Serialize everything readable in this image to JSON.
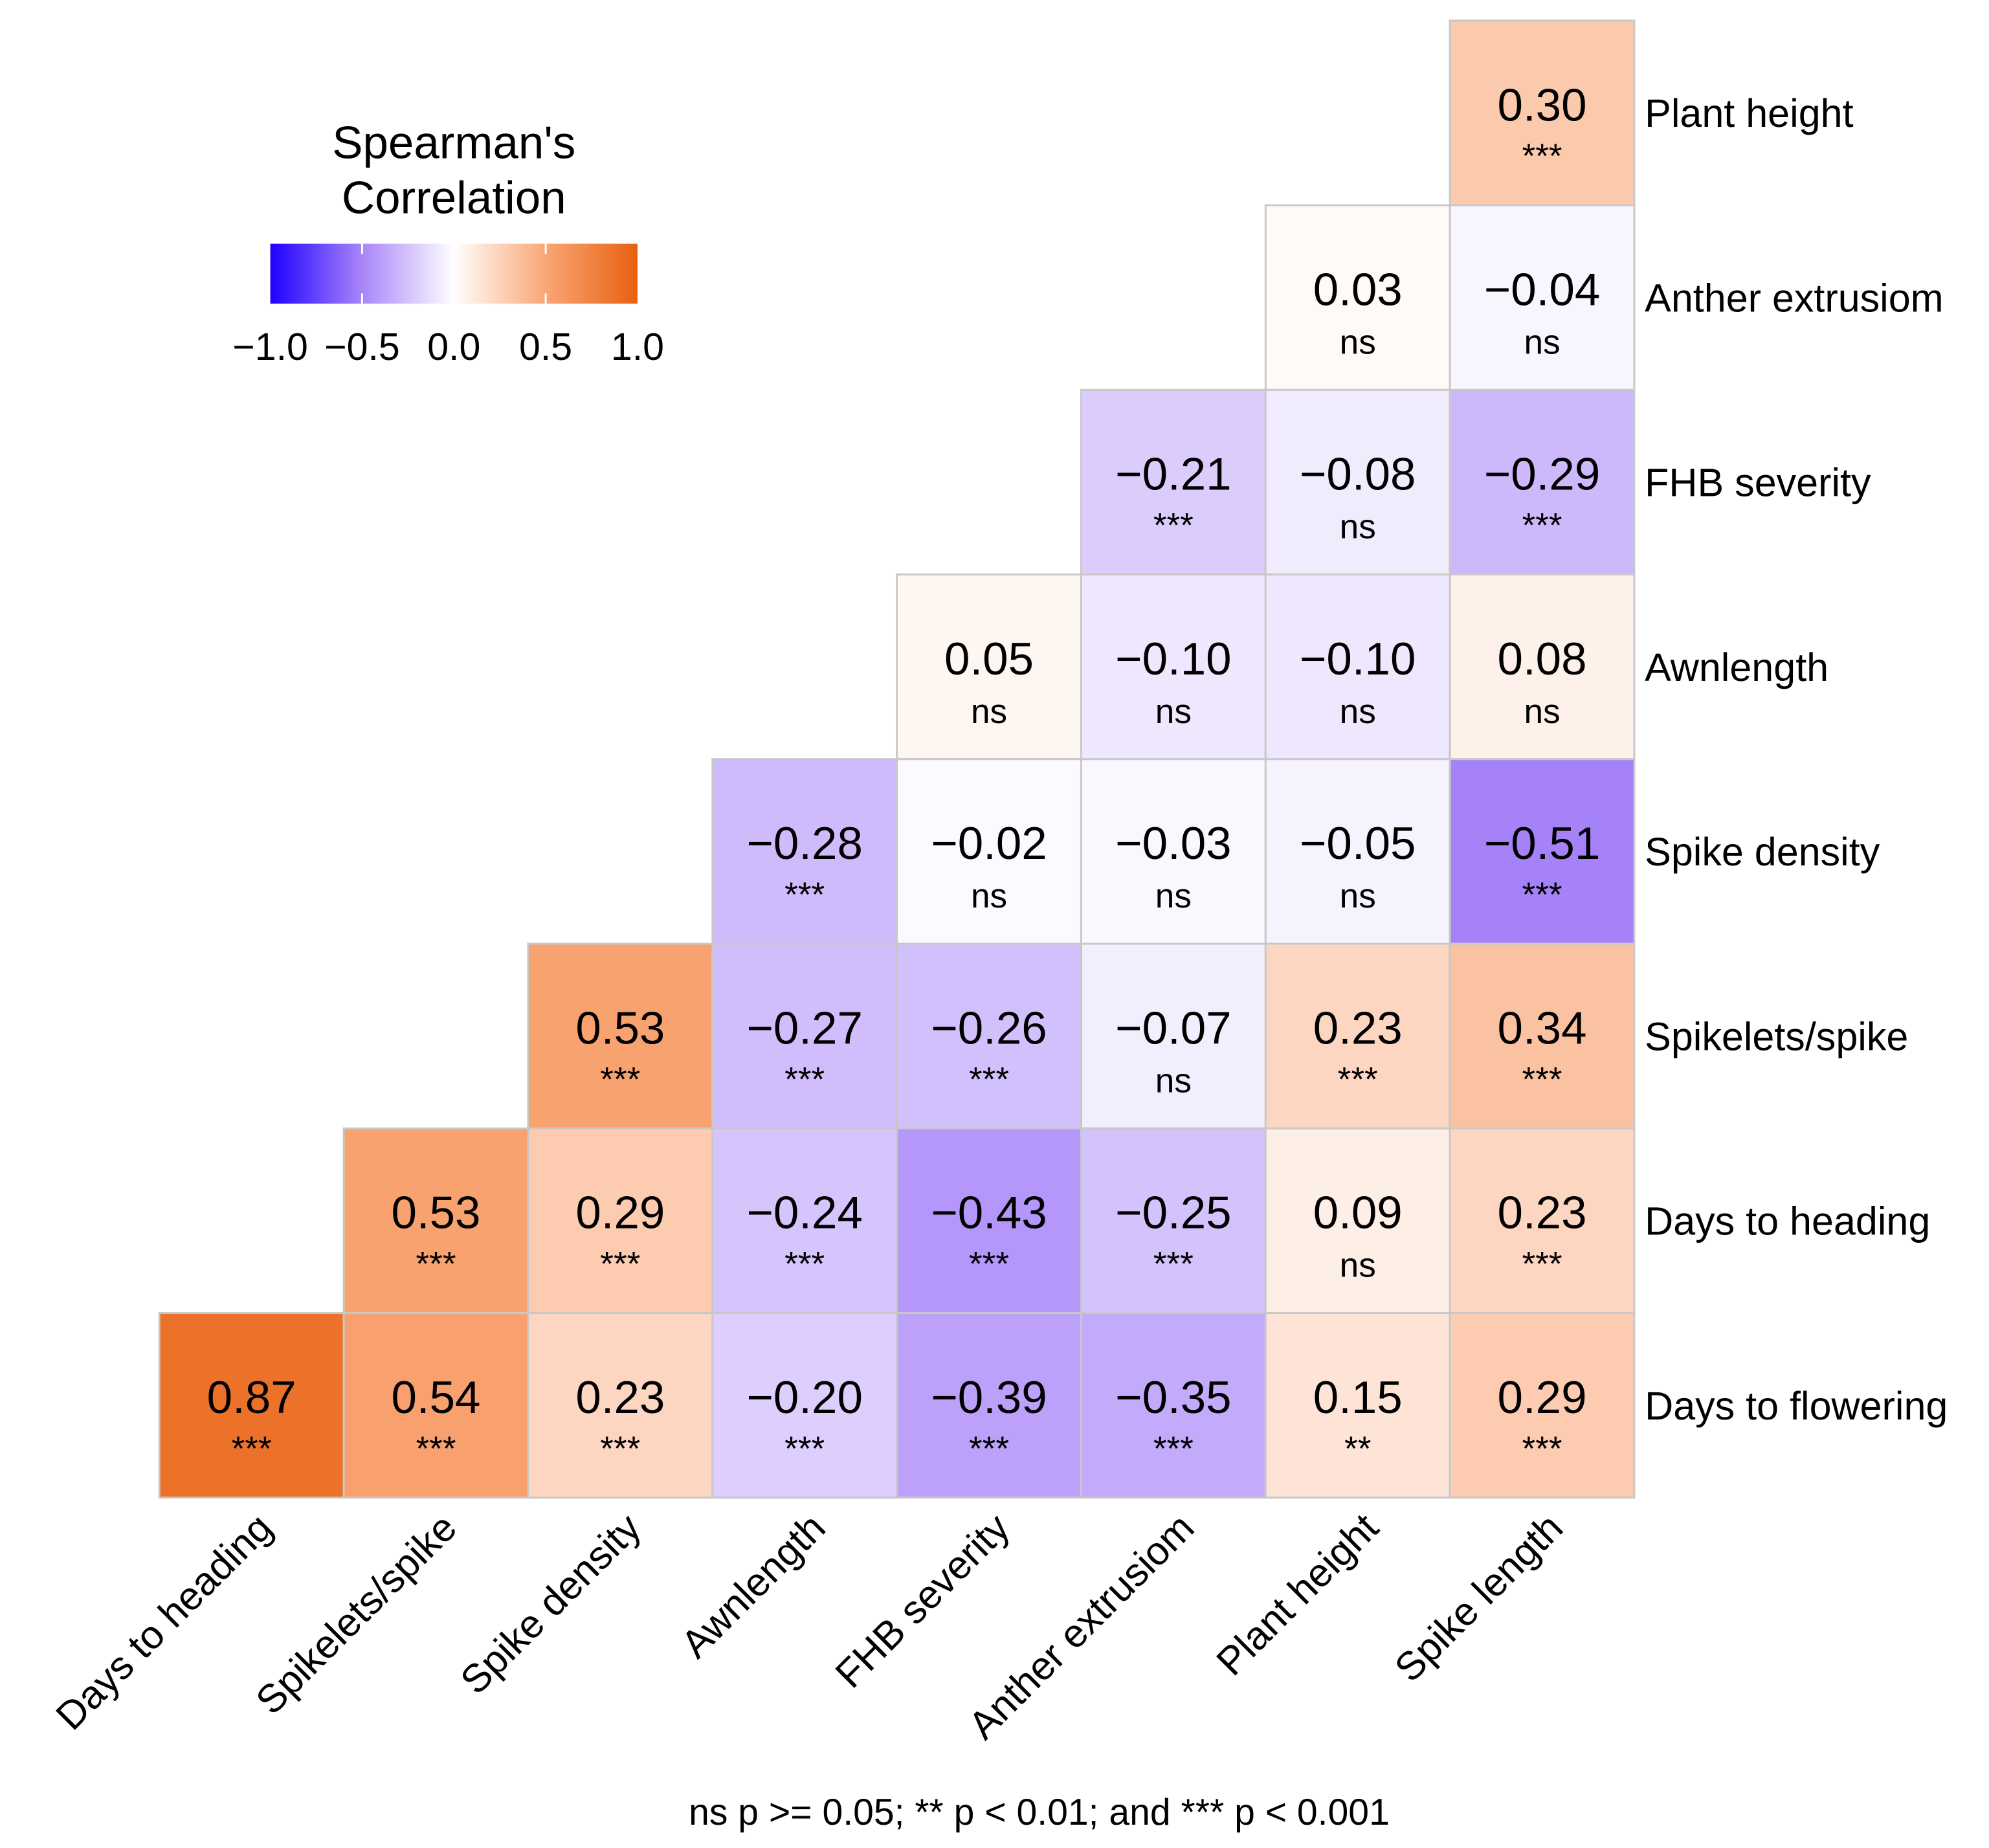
{
  "chart_data": {
    "type": "heatmap",
    "title": "",
    "legend": {
      "title_line1": "Spearman's",
      "title_line2": "Correlation",
      "ticks": [
        "−1.0",
        "−0.5",
        "0.0",
        "0.5",
        "1.0"
      ],
      "range": [
        -1,
        1
      ],
      "placement": "top-left",
      "colors": {
        "low": "#1f00ff",
        "mid_low": "#a985f9",
        "zero": "#ffffff",
        "mid_high": "#f9a676",
        "high": "#e8600e"
      }
    },
    "rows": [
      "Plant height",
      "Anther extrusiom",
      "FHB severity",
      "Awnlength",
      "Spike density",
      "Spikelets/spike",
      "Days to heading",
      "Days to flowering"
    ],
    "columns": [
      "Days to heading",
      "Spikelets/spike",
      "Spike density",
      "Awnlength",
      "FHB severity",
      "Anther extrusiom",
      "Plant height",
      "Spike length"
    ],
    "values": [
      [
        null,
        null,
        null,
        null,
        null,
        null,
        null,
        0.3
      ],
      [
        null,
        null,
        null,
        null,
        null,
        null,
        0.03,
        -0.04
      ],
      [
        null,
        null,
        null,
        null,
        null,
        -0.21,
        -0.08,
        -0.29
      ],
      [
        null,
        null,
        null,
        null,
        0.05,
        -0.1,
        -0.1,
        0.08
      ],
      [
        null,
        null,
        null,
        -0.28,
        -0.02,
        -0.03,
        -0.05,
        -0.51
      ],
      [
        null,
        null,
        0.53,
        -0.27,
        -0.26,
        -0.07,
        0.23,
        0.34
      ],
      [
        null,
        0.53,
        0.29,
        -0.24,
        -0.43,
        -0.25,
        0.09,
        0.23
      ],
      [
        0.87,
        0.54,
        0.23,
        -0.2,
        -0.39,
        -0.35,
        0.15,
        0.29
      ]
    ],
    "significance": [
      [
        null,
        null,
        null,
        null,
        null,
        null,
        null,
        "***"
      ],
      [
        null,
        null,
        null,
        null,
        null,
        null,
        "ns",
        "ns"
      ],
      [
        null,
        null,
        null,
        null,
        null,
        "***",
        "ns",
        "***"
      ],
      [
        null,
        null,
        null,
        null,
        "ns",
        "ns",
        "ns",
        "ns"
      ],
      [
        null,
        null,
        null,
        "***",
        "ns",
        "ns",
        "ns",
        "***"
      ],
      [
        null,
        null,
        "***",
        "***",
        "***",
        "ns",
        "***",
        "***"
      ],
      [
        null,
        "***",
        "***",
        "***",
        "***",
        "***",
        "ns",
        "***"
      ],
      [
        "***",
        "***",
        "***",
        "***",
        "***",
        "***",
        "**",
        "***"
      ]
    ],
    "footnote": "ns p >= 0.05; ** p < 0.01; and *** p < 0.001"
  }
}
